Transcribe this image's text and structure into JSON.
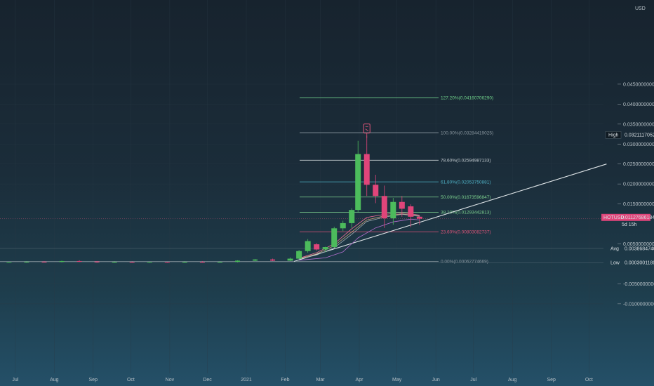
{
  "chart_data": {
    "type": "candlestick",
    "symbol": "HOTUSD",
    "currency": "USD",
    "y_axis": {
      "ticks": [
        "0.0450000000",
        "0.0400000000",
        "0.0350000000",
        "0.0300000000",
        "0.0250000000",
        "0.0200000000",
        "0.0150000000",
        "0.0050000000",
        "-0.0050000000",
        "-0.0100000000"
      ],
      "range": [
        -0.0115,
        0.045
      ]
    },
    "x_axis": {
      "ticks": [
        "Jul",
        "Aug",
        "Sep",
        "Oct",
        "Nov",
        "Dec",
        "2021",
        "Feb",
        "Mar",
        "Apr",
        "May",
        "Jun",
        "Jul",
        "Aug",
        "Sep",
        "Oct"
      ]
    },
    "fibonacci": [
      {
        "label": "127.20%(0.0416070629​0)",
        "ratio": "127.20%",
        "price": 0.0416070629,
        "color": "#6fcf8a"
      },
      {
        "label": "100.00%(0.0328441902​5)",
        "ratio": "100.00%",
        "price": 0.0328441903,
        "color": "#8a97a0"
      },
      {
        "label": "78.60%(0.0259498713​3)",
        "ratio": "78.60%",
        "price": 0.0259498713,
        "color": "#c3cbd0"
      },
      {
        "label": "61.80%(0.0205375088​1)",
        "ratio": "61.80%",
        "price": 0.0205375088,
        "color": "#4fb3c7"
      },
      {
        "label": "50.00%(0.0167359684​7)",
        "ratio": "50.00%",
        "price": 0.0167359685,
        "color": "#7ed38f"
      },
      {
        "label": "38.20%(0.0129344281​3)",
        "ratio": "38.20%",
        "price": 0.0129344281,
        "color": "#7ed38f"
      },
      {
        "label": "23.60%(0.0080308273​7)",
        "ratio": "23.60%",
        "price": 0.0080308274,
        "color": "#e0557a"
      },
      {
        "label": "0.00%(0.0006277466​9)",
        "ratio": "0.00%",
        "price": 0.0006277467,
        "color": "#8a97a0"
      }
    ],
    "price_markers": [
      {
        "label": "High",
        "value": "0.0321117052​1",
        "price": 0.0321117052,
        "style": "dark"
      },
      {
        "label": "HOTUSD",
        "value": "0.0112768618​4",
        "price": 0.0112768618,
        "style": "pink",
        "sublabel": "5d 15h"
      },
      {
        "label": "Avg",
        "value": "0.0038684740​1",
        "price": 0.003868474,
        "style": "plain"
      },
      {
        "label": "Low",
        "value": "0.0003001189​6",
        "price": 0.000300119,
        "style": "plain"
      }
    ],
    "candles": [
      {
        "date": "2020-06-26",
        "open": 0.00035,
        "high": 0.00045,
        "low": 0.00025,
        "close": 0.0004
      },
      {
        "date": "2020-07-10",
        "open": 0.0004,
        "high": 0.0006,
        "low": 0.0003,
        "close": 0.00055
      },
      {
        "date": "2020-07-24",
        "open": 0.00055,
        "high": 0.0007,
        "low": 0.0004,
        "close": 0.0005
      },
      {
        "date": "2020-08-07",
        "open": 0.0005,
        "high": 0.0008,
        "low": 0.0004,
        "close": 0.0007
      },
      {
        "date": "2020-08-21",
        "open": 0.0007,
        "high": 0.0009,
        "low": 0.0005,
        "close": 0.0006
      },
      {
        "date": "2020-09-04",
        "open": 0.0006,
        "high": 0.0007,
        "low": 0.0003,
        "close": 0.0004
      },
      {
        "date": "2020-09-18",
        "open": 0.0004,
        "high": 0.0006,
        "low": 0.0003,
        "close": 0.0005
      },
      {
        "date": "2020-10-02",
        "open": 0.0005,
        "high": 0.0006,
        "low": 0.0003,
        "close": 0.00035
      },
      {
        "date": "2020-10-16",
        "open": 0.00035,
        "high": 0.0005,
        "low": 0.0003,
        "close": 0.00045
      },
      {
        "date": "2020-10-30",
        "open": 0.00045,
        "high": 0.0005,
        "low": 0.0003,
        "close": 0.0004
      },
      {
        "date": "2020-11-13",
        "open": 0.0004,
        "high": 0.0006,
        "low": 0.0003,
        "close": 0.0005
      },
      {
        "date": "2020-11-27",
        "open": 0.0005,
        "high": 0.0007,
        "low": 0.0004,
        "close": 0.00045
      },
      {
        "date": "2020-12-11",
        "open": 0.00045,
        "high": 0.0006,
        "low": 0.0003,
        "close": 0.0005
      },
      {
        "date": "2020-12-25",
        "open": 0.0005,
        "high": 0.0009,
        "low": 0.0004,
        "close": 0.0008
      },
      {
        "date": "2021-01-08",
        "open": 0.0008,
        "high": 0.0012,
        "low": 0.0006,
        "close": 0.0011
      },
      {
        "date": "2021-01-22",
        "open": 0.0011,
        "high": 0.0013,
        "low": 0.0007,
        "close": 0.0008
      },
      {
        "date": "2021-02-05",
        "open": 0.0008,
        "high": 0.0016,
        "low": 0.0007,
        "close": 0.0013
      },
      {
        "date": "2021-02-12",
        "open": 0.0013,
        "high": 0.0035,
        "low": 0.0011,
        "close": 0.0032
      },
      {
        "date": "2021-02-19",
        "open": 0.0032,
        "high": 0.0062,
        "low": 0.0028,
        "close": 0.0057
      },
      {
        "date": "2021-02-26",
        "open": 0.0049,
        "high": 0.0052,
        "low": 0.0033,
        "close": 0.0036
      },
      {
        "date": "2021-03-05",
        "open": 0.0036,
        "high": 0.0043,
        "low": 0.0029,
        "close": 0.0042
      },
      {
        "date": "2021-03-12",
        "open": 0.0042,
        "high": 0.0093,
        "low": 0.0039,
        "close": 0.0089
      },
      {
        "date": "2021-03-19",
        "open": 0.0089,
        "high": 0.0108,
        "low": 0.0082,
        "close": 0.0102
      },
      {
        "date": "2021-03-26",
        "open": 0.0102,
        "high": 0.0139,
        "low": 0.009,
        "close": 0.0135
      },
      {
        "date": "2021-03-31",
        "open": 0.0135,
        "high": 0.0308,
        "low": 0.013,
        "close": 0.0275
      },
      {
        "date": "2021-04-07",
        "open": 0.0275,
        "high": 0.0321,
        "low": 0.017,
        "close": 0.0198
      },
      {
        "date": "2021-04-14",
        "open": 0.0198,
        "high": 0.0223,
        "low": 0.0152,
        "close": 0.017
      },
      {
        "date": "2021-04-21",
        "open": 0.017,
        "high": 0.0196,
        "low": 0.009,
        "close": 0.0114
      },
      {
        "date": "2021-04-28",
        "open": 0.0114,
        "high": 0.0165,
        "low": 0.0098,
        "close": 0.0155
      },
      {
        "date": "2021-05-05",
        "open": 0.0155,
        "high": 0.017,
        "low": 0.0118,
        "close": 0.0138
      },
      {
        "date": "2021-05-12",
        "open": 0.0144,
        "high": 0.0149,
        "low": 0.0092,
        "close": 0.0118
      },
      {
        "date": "2021-05-19",
        "open": 0.0118,
        "high": 0.0121,
        "low": 0.0098,
        "close": 0.0113
      }
    ],
    "moving_averages": [
      {
        "color": "#f07098",
        "points": [
          [
            "2021-02-12",
            0.0014
          ],
          [
            "2021-02-26",
            0.0028
          ],
          [
            "2021-03-12",
            0.005
          ],
          [
            "2021-03-26",
            0.0088
          ],
          [
            "2021-04-07",
            0.0116
          ],
          [
            "2021-04-21",
            0.0124
          ],
          [
            "2021-05-05",
            0.0128
          ],
          [
            "2021-05-19",
            0.0122
          ]
        ]
      },
      {
        "color": "#c7a07a",
        "points": [
          [
            "2021-02-12",
            0.0013
          ],
          [
            "2021-02-26",
            0.0025
          ],
          [
            "2021-03-12",
            0.0045
          ],
          [
            "2021-03-26",
            0.008
          ],
          [
            "2021-04-07",
            0.011
          ],
          [
            "2021-04-21",
            0.012
          ],
          [
            "2021-05-05",
            0.0125
          ],
          [
            "2021-05-19",
            0.012
          ]
        ]
      },
      {
        "color": "#b56fd0",
        "points": [
          [
            "2021-02-12",
            0.0009
          ],
          [
            "2021-03-05",
            0.0015
          ],
          [
            "2021-03-19",
            0.003
          ],
          [
            "2021-03-31",
            0.0065
          ],
          [
            "2021-04-14",
            0.009
          ],
          [
            "2021-04-28",
            0.0105
          ],
          [
            "2021-05-12",
            0.0112
          ],
          [
            "2021-05-19",
            0.011
          ]
        ]
      },
      {
        "color": "#a4aeb4",
        "points": [
          [
            "2021-02-12",
            0.0012
          ],
          [
            "2021-02-26",
            0.0022
          ],
          [
            "2021-03-12",
            0.004
          ],
          [
            "2021-03-26",
            0.0074
          ],
          [
            "2021-04-07",
            0.0106
          ],
          [
            "2021-04-21",
            0.0117
          ],
          [
            "2021-05-05",
            0.0124
          ],
          [
            "2021-05-19",
            0.0119
          ]
        ]
      }
    ],
    "trendline": {
      "start": {
        "date": "2021-02-08",
        "price": 0.0006
      },
      "end": {
        "date": "2021-10-15",
        "price": 0.025
      },
      "color": "#dfe5e8"
    },
    "signal_marker": {
      "date": "2021-04-07",
      "price": 0.0338,
      "color": "#e0557a"
    }
  }
}
